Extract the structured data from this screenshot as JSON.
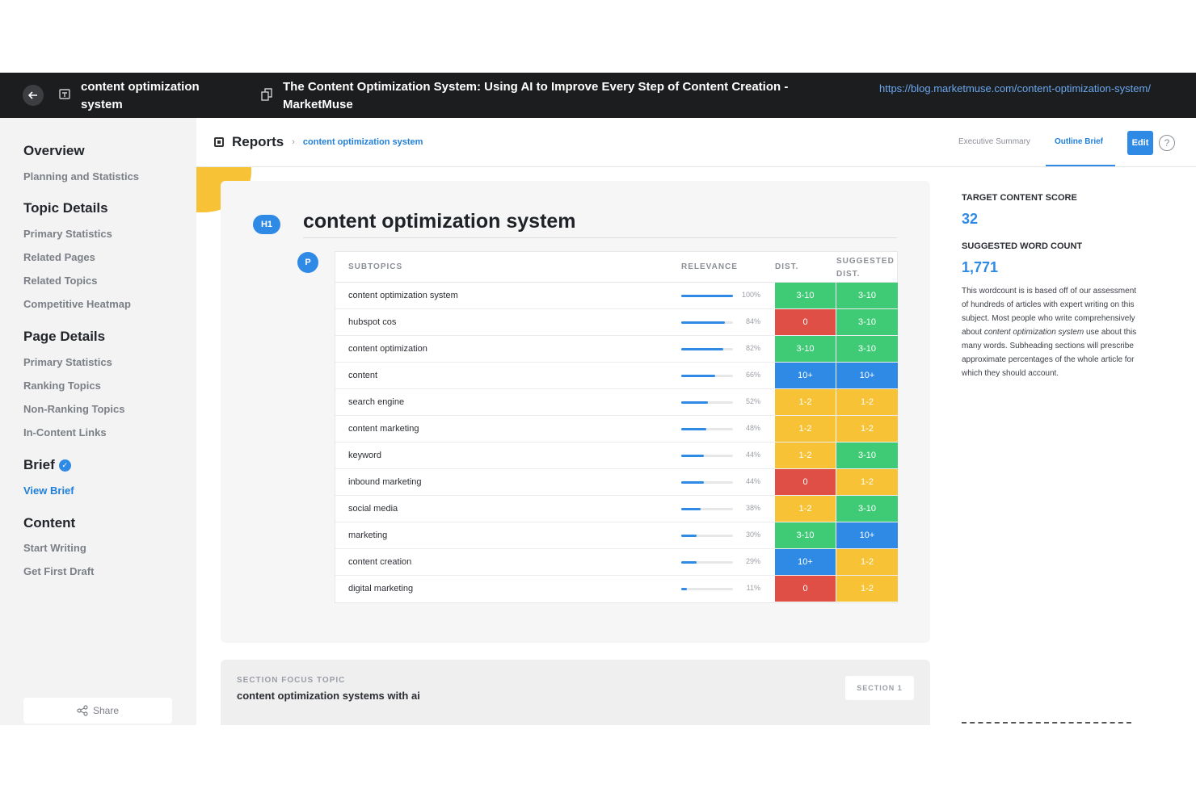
{
  "topbar": {
    "topic": "content optimization system",
    "page_title": "The Content Optimization System: Using AI to Improve Every Step of Content Creation - MarketMuse",
    "url": "https://blog.marketmuse.com/content-optimization-system/"
  },
  "sidebar": {
    "overview": {
      "heading": "Overview",
      "items": [
        "Planning and Statistics"
      ]
    },
    "topic_details": {
      "heading": "Topic Details",
      "items": [
        "Primary Statistics",
        "Related Pages",
        "Related Topics",
        "Competitive Heatmap"
      ]
    },
    "page_details": {
      "heading": "Page Details",
      "items": [
        "Primary Statistics",
        "Ranking Topics",
        "Non-Ranking Topics",
        "In-Content Links"
      ]
    },
    "brief": {
      "heading": "Brief",
      "link": "View Brief"
    },
    "content": {
      "heading": "Content",
      "items": [
        "Start Writing",
        "Get First Draft"
      ]
    },
    "share_label": "Share"
  },
  "header": {
    "breadcrumb_root": "Reports",
    "breadcrumb_current": "content optimization system",
    "tabs": [
      "Executive Summary",
      "Outline Brief"
    ],
    "active_tab": "Outline Brief",
    "edit_label": "Edit",
    "help_glyph": "?"
  },
  "outline": {
    "h1_badge": "H1",
    "h1_title": "content optimization system",
    "p_badge": "P",
    "columns": {
      "subtopics": "SUBTOPICS",
      "relevance": "RELEVANCE",
      "dist": "DIST.",
      "suggested_dist": "SUGGESTED DIST."
    },
    "rows": [
      {
        "topic": "content optimization system",
        "relevance": 100,
        "relevance_label": "100%",
        "dist": "3-10",
        "suggested": "3-10"
      },
      {
        "topic": "hubspot cos",
        "relevance": 84,
        "relevance_label": "84%",
        "dist": "0",
        "suggested": "3-10"
      },
      {
        "topic": "content optimization",
        "relevance": 82,
        "relevance_label": "82%",
        "dist": "3-10",
        "suggested": "3-10"
      },
      {
        "topic": "content",
        "relevance": 66,
        "relevance_label": "66%",
        "dist": "10+",
        "suggested": "10+"
      },
      {
        "topic": "search engine",
        "relevance": 52,
        "relevance_label": "52%",
        "dist": "1-2",
        "suggested": "1-2"
      },
      {
        "topic": "content marketing",
        "relevance": 48,
        "relevance_label": "48%",
        "dist": "1-2",
        "suggested": "1-2"
      },
      {
        "topic": "keyword",
        "relevance": 44,
        "relevance_label": "44%",
        "dist": "1-2",
        "suggested": "3-10"
      },
      {
        "topic": "inbound marketing",
        "relevance": 44,
        "relevance_label": "44%",
        "dist": "0",
        "suggested": "1-2"
      },
      {
        "topic": "social media",
        "relevance": 38,
        "relevance_label": "38%",
        "dist": "1-2",
        "suggested": "3-10"
      },
      {
        "topic": "marketing",
        "relevance": 30,
        "relevance_label": "30%",
        "dist": "3-10",
        "suggested": "10+"
      },
      {
        "topic": "content creation",
        "relevance": 29,
        "relevance_label": "29%",
        "dist": "10+",
        "suggested": "1-2"
      },
      {
        "topic": "digital marketing",
        "relevance": 11,
        "relevance_label": "11%",
        "dist": "0",
        "suggested": "1-2"
      }
    ],
    "dist_colors": {
      "0": "#e04f45",
      "1-2": "#f7c236",
      "3-10": "#3fcb75",
      "10+": "#2f8ae5"
    }
  },
  "section": {
    "label": "SECTION FOCUS TOPIC",
    "title": "content optimization systems with ai",
    "badge": "SECTION 1"
  },
  "right_panel": {
    "score_label": "TARGET CONTENT SCORE",
    "score_value": "32",
    "wordcount_label": "SUGGESTED WORD COUNT",
    "wordcount_value": "1,771",
    "desc_before": "This wordcount is is based off of our assessment of hundreds of articles with expert writing on this subject. Most people who write comprehensively about ",
    "desc_em": "content optimization system",
    "desc_after": " use about this many words. Subheading sections will prescribe approximate percentages of the whole article for which they should account."
  },
  "colors": {
    "accent": "#2f8ae5",
    "topbar": "#1c1d1f",
    "sidebar": "#f3f3f4",
    "blob": "#f7c236"
  }
}
